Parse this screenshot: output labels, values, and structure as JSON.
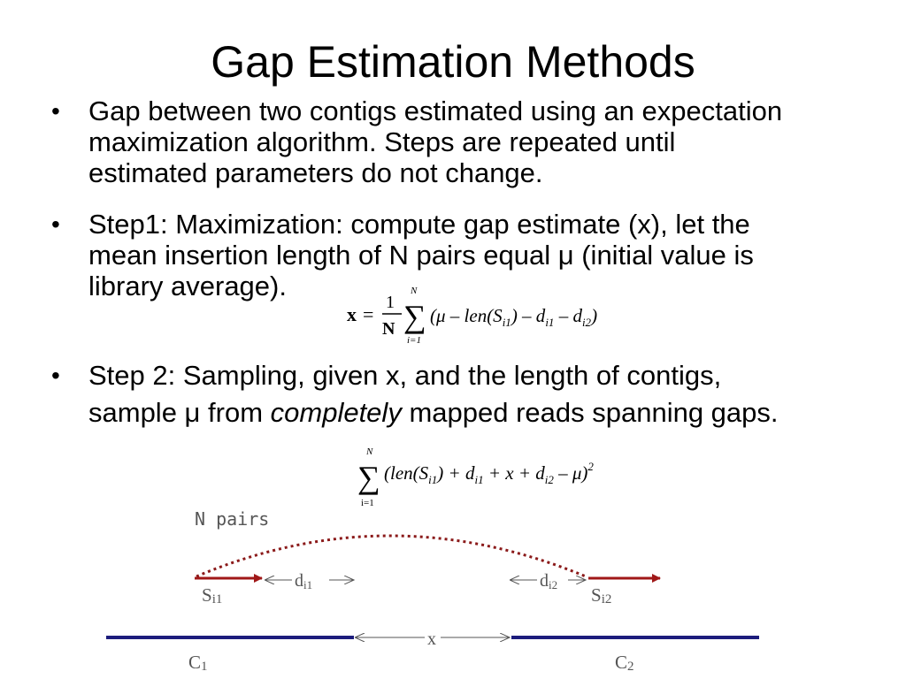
{
  "title": "Gap Estimation Methods",
  "bullets": [
    {
      "symbol": "•",
      "lines": [
        "Gap between two contigs estimated using an expectation",
        "maximization algorithm. Steps are repeated until",
        "estimated parameters do not change."
      ]
    },
    {
      "symbol": "•",
      "lines": [
        "Step1: Maximization: compute  gap estimate (x), let the",
        "mean insertion length of N pairs equal μ (initial value is",
        "library average)."
      ]
    },
    {
      "symbol": "•",
      "line1": "Step 2: Sampling, given x, and the length of contigs,",
      "line2_before": "sample μ from ",
      "line2_emph": "completely",
      "line2_after": " mapped reads spanning gaps."
    }
  ],
  "equation1": {
    "lhs": "x",
    "equals": "=",
    "frac_num": "1",
    "frac_den": "N",
    "sum_upper": "N",
    "sum_lower": "i=1",
    "sigma": "∑",
    "body": "(μ – len(S",
    "sub_i1": "i1",
    "mid1": ") – d",
    "sub_i1b": "i1",
    "mid2": " – d",
    "sub_i2": "i2",
    "end": ")"
  },
  "equation2": {
    "sum_upper": "N",
    "sum_lower": "i=1",
    "sigma": "∑",
    "body": "(len(S",
    "sub_i1": "i1",
    "mid1": ") + d",
    "sub_i1b": "i1",
    "mid2": " + x + d",
    "sub_i2": "i2",
    "end": " – μ)",
    "power": "2"
  },
  "diagram": {
    "n_pairs_label": "N pairs",
    "s_i1": "S",
    "s_i1_sub": "i1",
    "s_i2": "S",
    "s_i2_sub": "i2",
    "d_i1": "d",
    "d_i1_sub": "i1",
    "d_i2": "d",
    "d_i2_sub": "i2",
    "x_label": "x",
    "c1": "C",
    "c1_sub": "1",
    "c2": "C",
    "c2_sub": "2",
    "colors": {
      "read": "#a01818",
      "contig": "#1c1c7c",
      "arc": "#8b1a1a",
      "gray": "#555555"
    }
  }
}
